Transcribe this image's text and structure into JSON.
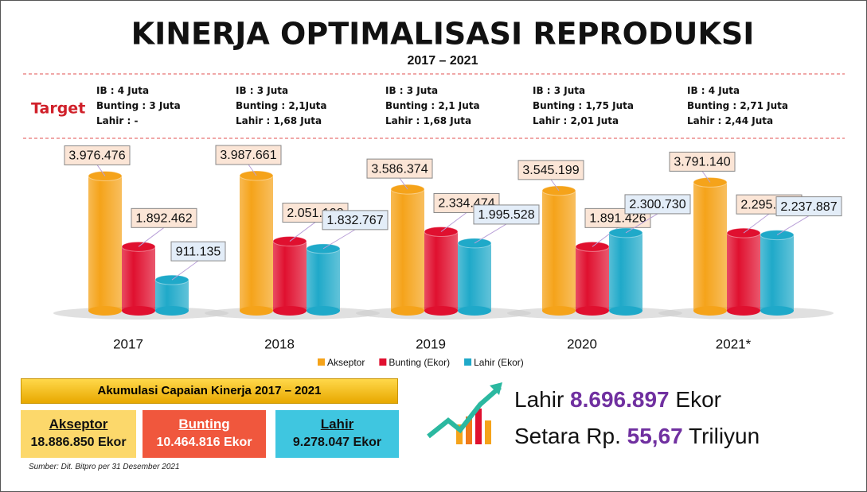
{
  "chart_data": {
    "type": "bar",
    "title": "KINERJA OPTIMALISASI REPRODUKSI",
    "subtitle": "2017 – 2021",
    "categories": [
      "2017",
      "2018",
      "2019",
      "2020",
      "2021*"
    ],
    "series": [
      {
        "name": "Akseptor",
        "color": "#f5a31a",
        "values": [
          3976476,
          3987661,
          3586374,
          3545199,
          3791140
        ],
        "value_labels": [
          "3.976.476",
          "3.987.661",
          "3.586.374",
          "3.545.199",
          "3.791.140"
        ]
      },
      {
        "name": "Bunting (Ekor)",
        "color": "#e0102f",
        "values": [
          1892462,
          2051108,
          2334474,
          1891426,
          2295346
        ],
        "value_labels": [
          "1.892.462",
          "2.051.108",
          "2.334.474",
          "1.891.426",
          "2.295.346"
        ]
      },
      {
        "name": "Lahir (Ekor)",
        "color": "#1fa9c9",
        "values": [
          911135,
          1832767,
          1995528,
          2300730,
          2237887
        ],
        "value_labels": [
          "911.135",
          "1.832.767",
          "1.995.528",
          "2.300.730",
          "2.237.887"
        ]
      }
    ],
    "legend": "bottom"
  },
  "targets": {
    "label": "Target",
    "items": [
      [
        "IB : 4 Juta",
        "Bunting : 3 Juta",
        "Lahir : -"
      ],
      [
        "IB : 3 Juta",
        "Bunting : 2,1Juta",
        "Lahir : 1,68 Juta"
      ],
      [
        "IB : 3 Juta",
        "Bunting : 2,1 Juta",
        "Lahir : 1,68 Juta"
      ],
      [
        "IB : 3 Juta",
        "Bunting : 1,75 Juta",
        "Lahir : 2,01 Juta"
      ],
      [
        "IB : 4 Juta",
        "Bunting : 2,71 Juta",
        "Lahir : 2,44 Juta"
      ]
    ]
  },
  "summary": {
    "title": "Akumulasi Capaian Kinerja 2017 – 2021",
    "boxes": [
      {
        "name": "Akseptor",
        "value": "18.886.850 Ekor"
      },
      {
        "name": "Bunting",
        "value": "10.464.816 Ekor"
      },
      {
        "name": "Lahir",
        "value": "9.278.047 Ekor"
      }
    ]
  },
  "highlight": {
    "line1": {
      "prefix": "Lahir",
      "number": "8.696.897",
      "suffix": "Ekor"
    },
    "line2": {
      "prefix": "Setara Rp.",
      "number": "55,67",
      "suffix": "Triliyun"
    }
  },
  "source": "Sumber: Dit. Bitpro per 31 Desember 2021"
}
